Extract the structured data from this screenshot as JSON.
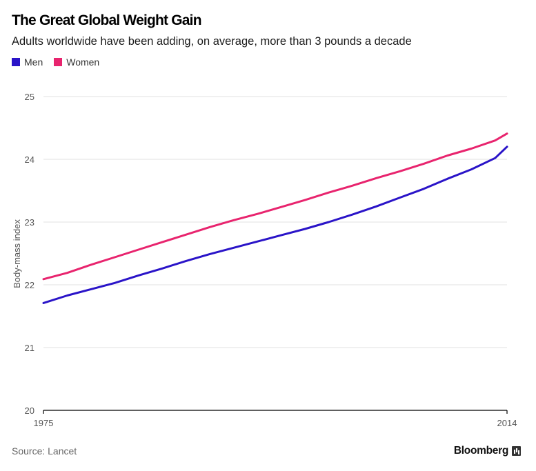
{
  "header": {
    "title": "The Great Global Weight Gain",
    "subtitle": "Adults worldwide have been adding, on average, more than 3 pounds a decade"
  },
  "legend": [
    {
      "label": "Men",
      "color": "#2a14c8"
    },
    {
      "label": "Women",
      "color": "#e8246e"
    }
  ],
  "footer": {
    "source": "Source: Lancet",
    "brand": "Bloomberg",
    "brand_icon": "bloomberg-chart-icon"
  },
  "chart_data": {
    "type": "line",
    "title": "The Great Global Weight Gain",
    "subtitle": "Adults worldwide have been adding, on average, more than 3 pounds a decade",
    "xlabel": "",
    "ylabel": "Body-mass index",
    "xlim": [
      1975,
      2014
    ],
    "ylim": [
      20,
      25
    ],
    "x_tick_labels": [
      "1975",
      "2014"
    ],
    "y_tick_labels": [
      "20",
      "21",
      "22",
      "23",
      "24",
      "25"
    ],
    "grid": true,
    "legend_position": "top-left",
    "x": [
      1975,
      1977,
      1979,
      1981,
      1983,
      1985,
      1987,
      1989,
      1991,
      1993,
      1995,
      1997,
      1999,
      2001,
      2003,
      2005,
      2007,
      2009,
      2011,
      2013,
      2014
    ],
    "series": [
      {
        "name": "Men",
        "color": "#2a14c8",
        "values": [
          21.71,
          21.83,
          21.93,
          22.03,
          22.15,
          22.26,
          22.38,
          22.49,
          22.59,
          22.69,
          22.79,
          22.89,
          23.0,
          23.12,
          23.25,
          23.39,
          23.53,
          23.69,
          23.84,
          24.02,
          24.2
        ]
      },
      {
        "name": "Women",
        "color": "#e8246e",
        "values": [
          22.09,
          22.19,
          22.32,
          22.44,
          22.56,
          22.68,
          22.8,
          22.92,
          23.03,
          23.13,
          23.24,
          23.35,
          23.47,
          23.58,
          23.7,
          23.81,
          23.93,
          24.06,
          24.17,
          24.3,
          24.41
        ]
      }
    ]
  }
}
